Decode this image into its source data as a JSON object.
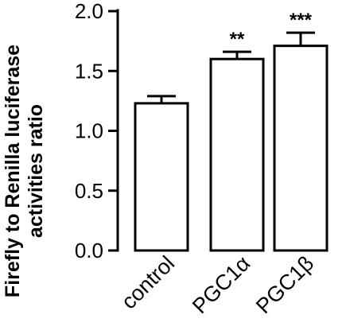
{
  "chart_data": {
    "type": "bar",
    "ylabel_line1": "Firefly to Renilla luciferase",
    "ylabel_line2": "activities ratio",
    "categories": [
      "control",
      "PGC1α",
      "PGC1β"
    ],
    "values": [
      1.23,
      1.6,
      1.71
    ],
    "errors": [
      0.06,
      0.06,
      0.11
    ],
    "annotations": [
      "",
      "**",
      "***"
    ],
    "ylim": [
      0,
      2.0
    ],
    "yticks": [
      "0.0",
      "0.5",
      "1.0",
      "1.5",
      "2.0"
    ],
    "bar_color": "#ffffff",
    "stroke_color": "#000000",
    "grid": false
  }
}
